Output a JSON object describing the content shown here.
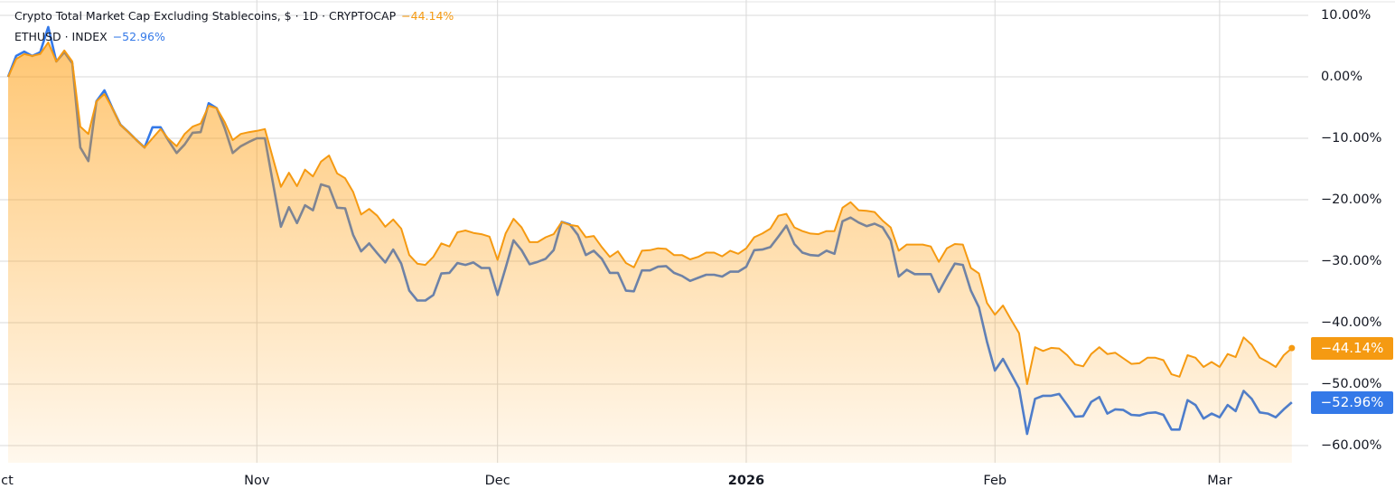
{
  "legend": {
    "series_1_label": "Crypto Total Market Cap Excluding Stablecoins, $ · 1D · CRYPTOCAP",
    "series_1_value": "−44.14%",
    "series_2_label": "ETHUSD · INDEX",
    "series_2_value": "−52.96%"
  },
  "badges": {
    "series_1": "−44.14%",
    "series_2": "−52.96%"
  },
  "colors": {
    "series_1": "#f59a12",
    "series_2": "#3479e8",
    "series_2_under_fill": "#6e86ad",
    "badge_1": "#f59a12",
    "badge_2": "#3479e8",
    "grid": "#d9d9d9"
  },
  "chart_data": {
    "type": "line",
    "comparison_mode": "percent",
    "grid": true,
    "legend_placement": "top-left",
    "axis_position": "right",
    "ylim": [
      -62,
      11
    ],
    "y_ticks": [
      10,
      0,
      -10,
      -20,
      -30,
      -40,
      -50,
      -60
    ],
    "y_tick_labels": [
      "10.00%",
      "0.00%",
      "−10.00%",
      "−20.00%",
      "−30.00%",
      "−40.00%",
      "−50.00%",
      "−60.00%"
    ],
    "x_ticks": [
      {
        "date": "2025-10-01",
        "label": "ct",
        "bold": false
      },
      {
        "date": "2025-11-01",
        "label": "Nov",
        "bold": false
      },
      {
        "date": "2025-12-01",
        "label": "Dec",
        "bold": false
      },
      {
        "date": "2026-01-01",
        "label": "2026",
        "bold": true
      },
      {
        "date": "2026-02-01",
        "label": "Feb",
        "bold": false
      },
      {
        "date": "2026-03-01",
        "label": "Mar",
        "bold": false
      }
    ],
    "x": [
      "2025-10-01",
      "2025-10-02",
      "2025-10-03",
      "2025-10-04",
      "2025-10-05",
      "2025-10-06",
      "2025-10-07",
      "2025-10-08",
      "2025-10-09",
      "2025-10-10",
      "2025-10-11",
      "2025-10-12",
      "2025-10-13",
      "2025-10-14",
      "2025-10-15",
      "2025-10-16",
      "2025-10-17",
      "2025-10-18",
      "2025-10-19",
      "2025-10-20",
      "2025-10-21",
      "2025-10-22",
      "2025-10-23",
      "2025-10-24",
      "2025-10-25",
      "2025-10-26",
      "2025-10-27",
      "2025-10-28",
      "2025-10-29",
      "2025-10-30",
      "2025-10-31",
      "2025-11-01",
      "2025-11-02",
      "2025-11-03",
      "2025-11-04",
      "2025-11-05",
      "2025-11-06",
      "2025-11-07",
      "2025-11-08",
      "2025-11-09",
      "2025-11-10",
      "2025-11-11",
      "2025-11-12",
      "2025-11-13",
      "2025-11-14",
      "2025-11-15",
      "2025-11-16",
      "2025-11-17",
      "2025-11-18",
      "2025-11-19",
      "2025-11-20",
      "2025-11-21",
      "2025-11-22",
      "2025-11-23",
      "2025-11-24",
      "2025-11-25",
      "2025-11-26",
      "2025-11-27",
      "2025-11-28",
      "2025-11-29",
      "2025-11-30",
      "2025-12-01",
      "2025-12-02",
      "2025-12-03",
      "2025-12-04",
      "2025-12-05",
      "2025-12-06",
      "2025-12-07",
      "2025-12-08",
      "2025-12-09",
      "2025-12-10",
      "2025-12-11",
      "2025-12-12",
      "2025-12-13",
      "2025-12-14",
      "2025-12-15",
      "2025-12-16",
      "2025-12-17",
      "2025-12-18",
      "2025-12-19",
      "2025-12-20",
      "2025-12-21",
      "2025-12-22",
      "2025-12-23",
      "2025-12-24",
      "2025-12-25",
      "2025-12-26",
      "2025-12-27",
      "2025-12-28",
      "2025-12-29",
      "2025-12-30",
      "2025-12-31",
      "2026-01-01",
      "2026-01-02",
      "2026-01-03",
      "2026-01-04",
      "2026-01-05",
      "2026-01-06",
      "2026-01-07",
      "2026-01-08",
      "2026-01-09",
      "2026-01-10",
      "2026-01-11",
      "2026-01-12",
      "2026-01-13",
      "2026-01-14",
      "2026-01-15",
      "2026-01-16",
      "2026-01-17",
      "2026-01-18",
      "2026-01-19",
      "2026-01-20",
      "2026-01-21",
      "2026-01-22",
      "2026-01-23",
      "2026-01-24",
      "2026-01-25",
      "2026-01-26",
      "2026-01-27",
      "2026-01-28",
      "2026-01-29",
      "2026-01-30",
      "2026-01-31",
      "2026-02-01",
      "2026-02-02",
      "2026-02-03",
      "2026-02-04",
      "2026-02-05",
      "2026-02-06",
      "2026-02-07",
      "2026-02-08",
      "2026-02-09",
      "2026-02-10",
      "2026-02-11",
      "2026-02-12",
      "2026-02-13",
      "2026-02-14",
      "2026-02-15",
      "2026-02-16",
      "2026-02-17",
      "2026-02-18",
      "2026-02-19",
      "2026-02-20",
      "2026-02-21",
      "2026-02-22",
      "2026-02-23",
      "2026-02-24",
      "2026-02-25",
      "2026-02-26",
      "2026-02-27",
      "2026-02-28",
      "2026-03-01",
      "2026-03-02",
      "2026-03-03",
      "2026-03-04",
      "2026-03-05",
      "2026-03-06",
      "2026-03-07",
      "2026-03-08",
      "2026-03-09",
      "2026-03-10"
    ],
    "series": [
      {
        "name": "Crypto Total Market Cap Excluding Stablecoins, $ · 1D · CRYPTOCAP",
        "color": "#f59a12",
        "filled": true,
        "values": [
          0,
          2.9,
          3.7,
          3.4,
          3.7,
          5.6,
          2.5,
          4.3,
          2.5,
          -8.1,
          -9.3,
          -4.0,
          -2.8,
          -5.1,
          -7.8,
          -9.0,
          -10.3,
          -11.5,
          -10.0,
          -8.5,
          -10.1,
          -11.3,
          -9.3,
          -8.1,
          -7.6,
          -4.7,
          -5.1,
          -7.4,
          -10.3,
          -9.3,
          -9.0,
          -8.8,
          -8.5,
          -13.2,
          -17.9,
          -15.6,
          -17.8,
          -15.1,
          -16.2,
          -13.8,
          -12.8,
          -15.7,
          -16.5,
          -18.7,
          -22.4,
          -21.5,
          -22.6,
          -24.4,
          -23.2,
          -24.7,
          -29.0,
          -30.4,
          -30.6,
          -29.3,
          -27.1,
          -27.6,
          -25.3,
          -25.0,
          -25.4,
          -25.6,
          -26.0,
          -29.8,
          -25.5,
          -23.1,
          -24.5,
          -26.9,
          -26.9,
          -26.1,
          -25.6,
          -23.6,
          -24.1,
          -24.3,
          -26.1,
          -25.9,
          -27.7,
          -29.3,
          -28.4,
          -30.3,
          -31.0,
          -28.3,
          -28.2,
          -27.9,
          -28.0,
          -29.0,
          -29.0,
          -29.7,
          -29.3,
          -28.6,
          -28.6,
          -29.2,
          -28.3,
          -28.8,
          -27.9,
          -26.1,
          -25.5,
          -24.7,
          -22.6,
          -22.3,
          -24.5,
          -25.1,
          -25.5,
          -25.6,
          -25.1,
          -25.1,
          -21.3,
          -20.4,
          -21.7,
          -21.8,
          -22.0,
          -23.4,
          -24.5,
          -28.3,
          -27.3,
          -27.3,
          -27.3,
          -27.6,
          -30.1,
          -27.9,
          -27.2,
          -27.3,
          -31.1,
          -32.0,
          -36.8,
          -38.7,
          -37.2,
          -39.5,
          -41.7,
          -50.0,
          -44.0,
          -44.6,
          -44.1,
          -44.2,
          -45.3,
          -46.8,
          -47.1,
          -45.1,
          -44.0,
          -45.1,
          -44.9,
          -45.8,
          -46.7,
          -46.6,
          -45.7,
          -45.7,
          -46.1,
          -48.4,
          -48.8,
          -45.3,
          -45.7,
          -47.2,
          -46.4,
          -47.2,
          -45.1,
          -45.6,
          -42.4,
          -43.6,
          -45.7,
          -46.4,
          -47.2,
          -45.3,
          -44.14
        ]
      },
      {
        "name": "ETHUSD · INDEX",
        "color": "#3479e8",
        "filled": false,
        "values": [
          0,
          3.4,
          4.1,
          3.4,
          4.0,
          8.1,
          2.5,
          4.0,
          2.2,
          -11.5,
          -13.7,
          -4.0,
          -2.2,
          -5.1,
          -7.8,
          -9.0,
          -10.3,
          -11.5,
          -8.2,
          -8.2,
          -10.4,
          -12.4,
          -11.0,
          -9.1,
          -9.0,
          -4.3,
          -5.1,
          -8.4,
          -12.4,
          -11.3,
          -10.6,
          -10.0,
          -10.0,
          -17.2,
          -24.4,
          -21.2,
          -23.8,
          -20.9,
          -21.7,
          -17.5,
          -17.9,
          -21.3,
          -21.4,
          -25.7,
          -28.4,
          -27.1,
          -28.7,
          -30.2,
          -28.1,
          -30.4,
          -34.8,
          -36.4,
          -36.4,
          -35.5,
          -32.0,
          -31.9,
          -30.3,
          -30.6,
          -30.2,
          -31.1,
          -31.1,
          -35.5,
          -31.1,
          -26.6,
          -28.2,
          -30.5,
          -30.1,
          -29.6,
          -28.2,
          -23.6,
          -24.0,
          -25.7,
          -29.0,
          -28.3,
          -29.6,
          -31.9,
          -31.9,
          -34.8,
          -34.9,
          -31.5,
          -31.5,
          -30.9,
          -30.8,
          -31.9,
          -32.4,
          -33.2,
          -32.7,
          -32.2,
          -32.2,
          -32.5,
          -31.7,
          -31.7,
          -30.9,
          -28.2,
          -28.1,
          -27.7,
          -26.0,
          -24.2,
          -27.2,
          -28.6,
          -29.0,
          -29.1,
          -28.3,
          -28.8,
          -23.5,
          -22.9,
          -23.7,
          -24.3,
          -23.9,
          -24.5,
          -26.6,
          -32.5,
          -31.4,
          -32.1,
          -32.1,
          -32.1,
          -35.0,
          -32.6,
          -30.4,
          -30.6,
          -34.8,
          -37.5,
          -43.1,
          -47.8,
          -45.9,
          -48.3,
          -50.7,
          -58.1,
          -52.4,
          -51.9,
          -51.9,
          -51.6,
          -53.4,
          -55.3,
          -55.2,
          -52.9,
          -52.1,
          -54.8,
          -54.1,
          -54.2,
          -55.0,
          -55.1,
          -54.7,
          -54.6,
          -55.0,
          -57.4,
          -57.4,
          -52.6,
          -53.4,
          -55.6,
          -54.8,
          -55.4,
          -53.4,
          -54.4,
          -51.1,
          -52.4,
          -54.6,
          -54.8,
          -55.4,
          -54.1,
          -52.96
        ]
      }
    ]
  }
}
